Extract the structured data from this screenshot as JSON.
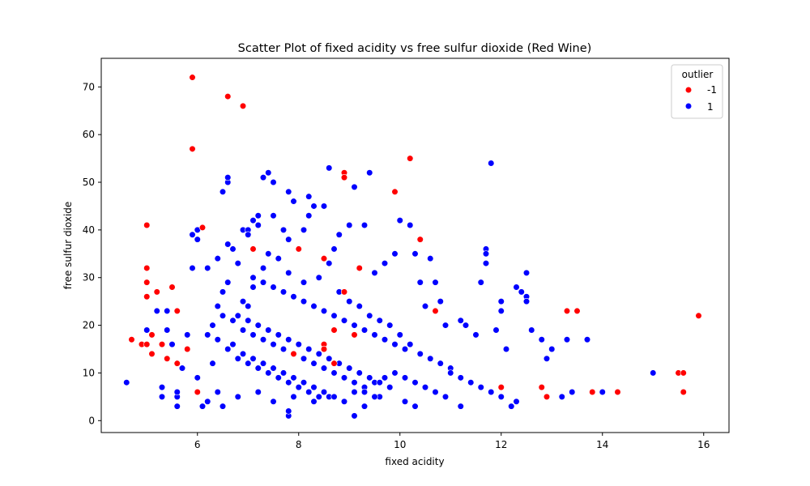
{
  "chart_data": {
    "type": "scatter",
    "title": "Scatter Plot of fixed acidity vs free sulfur dioxide (Red Wine)",
    "xlabel": "fixed acidity",
    "ylabel": "free sulfur dioxide",
    "xlim": [
      4.1,
      16.5
    ],
    "ylim": [
      -2.5,
      76
    ],
    "xticks": [
      6,
      8,
      10,
      12,
      14,
      16
    ],
    "yticks": [
      0,
      10,
      20,
      30,
      40,
      50,
      60,
      70
    ],
    "grid": false,
    "legend": {
      "title": "outlier",
      "position": "top-right"
    },
    "series": [
      {
        "name": "-1",
        "color": "#ff0000",
        "points": [
          [
            5.9,
            72
          ],
          [
            6.6,
            68
          ],
          [
            6.9,
            66
          ],
          [
            5.9,
            57
          ],
          [
            10.2,
            55
          ],
          [
            8.9,
            52
          ],
          [
            8.9,
            51
          ],
          [
            9.9,
            48
          ],
          [
            5.0,
            41
          ],
          [
            6.1,
            40.5
          ],
          [
            10.4,
            38
          ],
          [
            7.1,
            36
          ],
          [
            8.0,
            36
          ],
          [
            8.5,
            34
          ],
          [
            5.0,
            32
          ],
          [
            9.2,
            32
          ],
          [
            5.0,
            29
          ],
          [
            8.9,
            27
          ],
          [
            5.2,
            27
          ],
          [
            5.0,
            26
          ],
          [
            5.5,
            28
          ],
          [
            5.6,
            23
          ],
          [
            10.7,
            23
          ],
          [
            13.3,
            23
          ],
          [
            13.5,
            23
          ],
          [
            15.9,
            22
          ],
          [
            8.7,
            19
          ],
          [
            5.1,
            18
          ],
          [
            9.1,
            18
          ],
          [
            4.7,
            17
          ],
          [
            4.9,
            16
          ],
          [
            5.0,
            16
          ],
          [
            5.3,
            16
          ],
          [
            8.5,
            16
          ],
          [
            8.5,
            15
          ],
          [
            5.8,
            15
          ],
          [
            5.1,
            14
          ],
          [
            7.9,
            14
          ],
          [
            5.4,
            13
          ],
          [
            5.6,
            12
          ],
          [
            8.7,
            12
          ],
          [
            6.0,
            6
          ],
          [
            13.8,
            6
          ],
          [
            14.3,
            6
          ],
          [
            15.6,
            6
          ],
          [
            15.5,
            10
          ],
          [
            15.6,
            10
          ],
          [
            12.9,
            5
          ],
          [
            12.0,
            7
          ],
          [
            12.8,
            7
          ]
        ]
      },
      {
        "name": "1",
        "color": "#0000ff",
        "points": [
          [
            4.6,
            8
          ],
          [
            5.0,
            19
          ],
          [
            5.2,
            23
          ],
          [
            5.3,
            5
          ],
          [
            5.3,
            7
          ],
          [
            5.4,
            23
          ],
          [
            5.4,
            19
          ],
          [
            5.5,
            16
          ],
          [
            5.6,
            3
          ],
          [
            5.6,
            5
          ],
          [
            5.6,
            6
          ],
          [
            5.7,
            11
          ],
          [
            5.8,
            18
          ],
          [
            5.9,
            39
          ],
          [
            5.9,
            32
          ],
          [
            6.0,
            40
          ],
          [
            6.0,
            38
          ],
          [
            6.0,
            9
          ],
          [
            6.1,
            3
          ],
          [
            6.2,
            32
          ],
          [
            6.4,
            34
          ],
          [
            6.5,
            48
          ],
          [
            6.6,
            50
          ],
          [
            6.6,
            51
          ],
          [
            6.6,
            37
          ],
          [
            6.6,
            29
          ],
          [
            6.7,
            36
          ],
          [
            6.8,
            33
          ],
          [
            6.9,
            40
          ],
          [
            7.0,
            40
          ],
          [
            7.0,
            39
          ],
          [
            7.1,
            42
          ],
          [
            7.2,
            43
          ],
          [
            7.2,
            41
          ],
          [
            7.3,
            51
          ],
          [
            7.4,
            52
          ],
          [
            7.5,
            50
          ],
          [
            7.5,
            43
          ],
          [
            7.7,
            40
          ],
          [
            7.8,
            48
          ],
          [
            7.8,
            38
          ],
          [
            7.9,
            46
          ],
          [
            8.1,
            40
          ],
          [
            8.2,
            47
          ],
          [
            8.2,
            43
          ],
          [
            8.3,
            45
          ],
          [
            8.5,
            45
          ],
          [
            8.6,
            53
          ],
          [
            8.7,
            36
          ],
          [
            8.8,
            39
          ],
          [
            9.0,
            41
          ],
          [
            9.1,
            49
          ],
          [
            9.3,
            41
          ],
          [
            9.4,
            52
          ],
          [
            9.5,
            31
          ],
          [
            9.7,
            33
          ],
          [
            9.9,
            35
          ],
          [
            10.0,
            42
          ],
          [
            10.2,
            41
          ],
          [
            10.3,
            35
          ],
          [
            10.4,
            29
          ],
          [
            10.5,
            24
          ],
          [
            10.6,
            34
          ],
          [
            10.7,
            29
          ],
          [
            10.8,
            25
          ],
          [
            10.9,
            20
          ],
          [
            11.0,
            11
          ],
          [
            11.2,
            21
          ],
          [
            11.3,
            20
          ],
          [
            11.5,
            18
          ],
          [
            11.6,
            29
          ],
          [
            11.7,
            36
          ],
          [
            11.7,
            35
          ],
          [
            11.7,
            33
          ],
          [
            11.8,
            54
          ],
          [
            11.9,
            19
          ],
          [
            12.0,
            25
          ],
          [
            12.0,
            23
          ],
          [
            12.1,
            15
          ],
          [
            12.2,
            3
          ],
          [
            12.3,
            28
          ],
          [
            12.4,
            27
          ],
          [
            12.5,
            31
          ],
          [
            12.5,
            26
          ],
          [
            12.5,
            25
          ],
          [
            12.6,
            19
          ],
          [
            12.8,
            17
          ],
          [
            12.9,
            13
          ],
          [
            13.0,
            15
          ],
          [
            13.2,
            5
          ],
          [
            13.3,
            17
          ],
          [
            13.4,
            6
          ],
          [
            13.7,
            17
          ],
          [
            14.0,
            6
          ],
          [
            15.0,
            10
          ],
          [
            9.1,
            1
          ],
          [
            7.8,
            1
          ],
          [
            7.8,
            2
          ],
          [
            9.3,
            3
          ],
          [
            10.1,
            4
          ],
          [
            11.2,
            3
          ],
          [
            6.5,
            3
          ],
          [
            6.2,
            4
          ],
          [
            6.4,
            6
          ],
          [
            6.8,
            5
          ],
          [
            7.2,
            6
          ],
          [
            7.5,
            4
          ],
          [
            7.9,
            5
          ],
          [
            8.3,
            4
          ],
          [
            8.6,
            5
          ],
          [
            9.6,
            5
          ],
          [
            10.3,
            3
          ],
          [
            12.3,
            4
          ],
          [
            6.3,
            12
          ],
          [
            6.3,
            20
          ],
          [
            6.4,
            24
          ],
          [
            6.5,
            27
          ],
          [
            6.9,
            25
          ],
          [
            7.0,
            24
          ],
          [
            7.1,
            28
          ],
          [
            7.3,
            32
          ],
          [
            7.4,
            35
          ],
          [
            7.6,
            34
          ],
          [
            7.8,
            31
          ],
          [
            8.1,
            29
          ],
          [
            8.4,
            30
          ],
          [
            8.6,
            33
          ],
          [
            8.8,
            27
          ],
          [
            9.0,
            25
          ],
          [
            9.2,
            24
          ],
          [
            9.4,
            22
          ],
          [
            9.6,
            21
          ],
          [
            9.8,
            20
          ],
          [
            10.0,
            18
          ],
          [
            10.2,
            16
          ],
          [
            10.4,
            14
          ],
          [
            10.6,
            13
          ],
          [
            10.8,
            12
          ],
          [
            11.0,
            10
          ],
          [
            11.2,
            9
          ],
          [
            11.4,
            8
          ],
          [
            11.6,
            7
          ],
          [
            11.8,
            6
          ],
          [
            12.0,
            5
          ],
          [
            6.7,
            16
          ],
          [
            6.9,
            14
          ],
          [
            7.1,
            13
          ],
          [
            7.3,
            12
          ],
          [
            7.5,
            11
          ],
          [
            7.7,
            10
          ],
          [
            7.9,
            9
          ],
          [
            8.1,
            8
          ],
          [
            8.3,
            7
          ],
          [
            8.5,
            6
          ],
          [
            8.7,
            5
          ],
          [
            8.9,
            4
          ],
          [
            9.1,
            6
          ],
          [
            9.3,
            7
          ],
          [
            9.5,
            8
          ],
          [
            9.7,
            9
          ],
          [
            9.9,
            10
          ],
          [
            10.1,
            9
          ],
          [
            10.3,
            8
          ],
          [
            10.5,
            7
          ],
          [
            10.7,
            6
          ],
          [
            10.9,
            5
          ],
          [
            6.2,
            18
          ],
          [
            6.4,
            17
          ],
          [
            6.6,
            15
          ],
          [
            6.8,
            13
          ],
          [
            7.0,
            12
          ],
          [
            7.2,
            11
          ],
          [
            7.4,
            10
          ],
          [
            7.6,
            9
          ],
          [
            7.8,
            8
          ],
          [
            8.0,
            7
          ],
          [
            8.2,
            6
          ],
          [
            8.4,
            5
          ],
          [
            6.8,
            22
          ],
          [
            7.0,
            21
          ],
          [
            7.2,
            20
          ],
          [
            7.4,
            19
          ],
          [
            7.6,
            18
          ],
          [
            7.8,
            17
          ],
          [
            8.0,
            16
          ],
          [
            8.2,
            15
          ],
          [
            8.4,
            14
          ],
          [
            8.6,
            13
          ],
          [
            8.8,
            12
          ],
          [
            9.0,
            11
          ],
          [
            9.2,
            10
          ],
          [
            9.4,
            9
          ],
          [
            9.6,
            8
          ],
          [
            9.8,
            7
          ],
          [
            7.1,
            30
          ],
          [
            7.3,
            29
          ],
          [
            7.5,
            28
          ],
          [
            7.7,
            27
          ],
          [
            7.9,
            26
          ],
          [
            8.1,
            25
          ],
          [
            8.3,
            24
          ],
          [
            8.5,
            23
          ],
          [
            8.7,
            22
          ],
          [
            8.9,
            21
          ],
          [
            9.1,
            20
          ],
          [
            9.3,
            19
          ],
          [
            9.5,
            18
          ],
          [
            9.7,
            17
          ],
          [
            9.9,
            16
          ],
          [
            10.1,
            15
          ],
          [
            6.5,
            22
          ],
          [
            6.7,
            21
          ],
          [
            6.9,
            19
          ],
          [
            7.1,
            18
          ],
          [
            7.3,
            17
          ],
          [
            7.5,
            16
          ],
          [
            7.7,
            15
          ],
          [
            7.9,
            14
          ],
          [
            8.1,
            13
          ],
          [
            8.3,
            12
          ],
          [
            8.5,
            11
          ],
          [
            8.7,
            10
          ],
          [
            8.9,
            9
          ],
          [
            9.1,
            8
          ],
          [
            9.3,
            6
          ],
          [
            9.5,
            5
          ]
        ]
      }
    ]
  }
}
